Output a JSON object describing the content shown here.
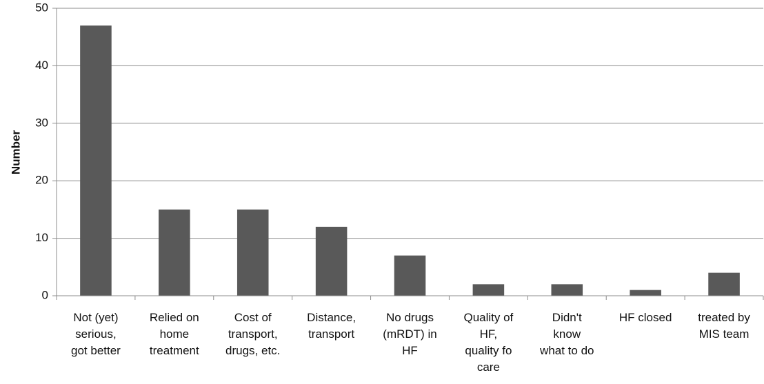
{
  "chart_data": {
    "type": "bar",
    "y_label": "Number",
    "categories": [
      "Not (yet)\nserious,\ngot better",
      "Relied on\nhome\ntreatment",
      "Cost of\ntransport,\ndrugs, etc.",
      "Distance,\ntransport",
      "No drugs\n(mRDT) in\nHF",
      "Quality of\nHF,\nquality fo\ncare",
      "Didn't\nknow\nwhat to do",
      "HF closed",
      "treated by\nMIS team"
    ],
    "values": [
      47,
      15,
      15,
      12,
      7,
      2,
      2,
      1,
      4
    ],
    "color": "#595959",
    "ylim": [
      0,
      50
    ],
    "yticks": [
      0,
      10,
      20,
      30,
      40,
      50
    ],
    "grid": true
  }
}
